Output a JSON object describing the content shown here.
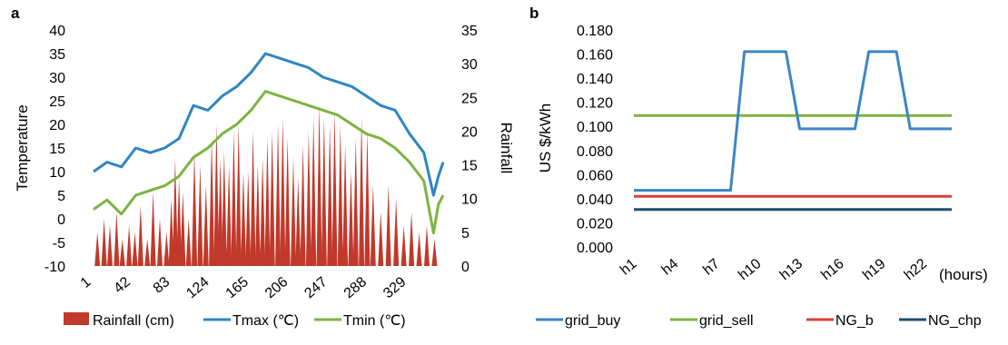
{
  "chart_data": [
    {
      "panel": "a",
      "type": "line",
      "ylabel": "Temperature",
      "y2label": "Rainfall",
      "ylim": [
        -10,
        40
      ],
      "y_ticks": [
        40,
        35,
        30,
        25,
        20,
        15,
        10,
        5,
        0,
        -5,
        -10
      ],
      "y2lim": [
        0,
        35
      ],
      "y2_ticks": [
        35,
        30,
        25,
        20,
        15,
        10,
        5,
        0
      ],
      "x_tick_labels": [
        "1",
        "42",
        "83",
        "124",
        "165",
        "206",
        "247",
        "288",
        "329"
      ],
      "x_range": [
        1,
        365
      ],
      "legend_position": "bottom",
      "series": [
        {
          "name": "Rainfall (cm)",
          "type": "bar",
          "axis": "right",
          "color": "#c0392b",
          "x": [
            5,
            12,
            18,
            25,
            31,
            38,
            44,
            50,
            57,
            63,
            70,
            77,
            82,
            86,
            90,
            94,
            100,
            106,
            112,
            118,
            124,
            129,
            133,
            137,
            142,
            147,
            152,
            157,
            162,
            167,
            172,
            177,
            182,
            187,
            193,
            198,
            203,
            209,
            214,
            219,
            225,
            230,
            236,
            241,
            247,
            252,
            258,
            263,
            269,
            274,
            280,
            286,
            292,
            300,
            308,
            316,
            324,
            332,
            340,
            348,
            356
          ],
          "values": [
            5,
            7,
            6,
            8,
            4,
            6,
            5,
            9,
            4,
            11,
            7,
            5,
            10,
            16,
            13,
            11,
            7,
            17,
            15,
            12,
            19,
            21,
            16,
            17,
            15,
            20,
            21,
            14,
            14,
            20,
            15,
            16,
            19,
            20,
            21,
            22,
            19,
            16,
            13,
            18,
            20,
            22,
            24,
            22,
            21,
            23,
            21,
            18,
            14,
            19,
            22,
            20,
            12,
            8,
            12,
            10,
            6,
            8,
            5,
            6,
            4
          ]
        },
        {
          "name": "Tmax (℃)",
          "type": "line",
          "axis": "left",
          "color": "#2e86c1",
          "x": [
            1,
            15,
            30,
            45,
            60,
            75,
            90,
            105,
            120,
            135,
            150,
            165,
            180,
            195,
            210,
            225,
            240,
            255,
            270,
            285,
            300,
            315,
            330,
            345,
            355,
            360,
            365
          ],
          "values": [
            10,
            12,
            11,
            15,
            14,
            15,
            17,
            24,
            23,
            26,
            28,
            31,
            35,
            34,
            33,
            32,
            30,
            29,
            28,
            26,
            24,
            23,
            18,
            14,
            5,
            9,
            12
          ]
        },
        {
          "name": "Tmin (℃)",
          "type": "line",
          "axis": "left",
          "color": "#7cb342",
          "x": [
            1,
            15,
            30,
            45,
            60,
            75,
            90,
            105,
            120,
            135,
            150,
            165,
            180,
            195,
            210,
            225,
            240,
            255,
            270,
            285,
            300,
            315,
            330,
            345,
            355,
            360,
            365
          ],
          "values": [
            2,
            4,
            1,
            5,
            6,
            7,
            9,
            13,
            15,
            18,
            20,
            23,
            27,
            26,
            25,
            24,
            23,
            22,
            20,
            18,
            17,
            15,
            12,
            8,
            -3,
            3,
            5
          ]
        }
      ]
    },
    {
      "panel": "b",
      "type": "line",
      "ylabel": "US $/kWh",
      "xlabel": "(hours)",
      "ylim": [
        0,
        0.18
      ],
      "y_tick_labels": [
        "0.180",
        "0.160",
        "0.140",
        "0.120",
        "0.100",
        "0.080",
        "0.060",
        "0.040",
        "0.020",
        "0.000"
      ],
      "x_tick_labels": [
        "h1",
        "h4",
        "h7",
        "h10",
        "h13",
        "h16",
        "h19",
        "h22"
      ],
      "x_range": [
        1,
        24
      ],
      "legend_position": "bottom",
      "series": [
        {
          "name": "grid_buy",
          "color": "#3d85c6",
          "x": [
            1,
            2,
            3,
            4,
            5,
            6,
            7,
            8,
            9,
            10,
            11,
            12,
            13,
            14,
            15,
            16,
            17,
            18,
            19,
            20,
            21,
            22,
            23,
            24
          ],
          "values": [
            0.047,
            0.047,
            0.047,
            0.047,
            0.047,
            0.047,
            0.047,
            0.047,
            0.162,
            0.162,
            0.162,
            0.162,
            0.098,
            0.098,
            0.098,
            0.098,
            0.098,
            0.162,
            0.162,
            0.162,
            0.098,
            0.098,
            0.098,
            0.098
          ]
        },
        {
          "name": "grid_sell",
          "color": "#7cb342",
          "x": [
            1,
            24
          ],
          "values": [
            0.109,
            0.109
          ]
        },
        {
          "name": "NG_b",
          "color": "#d9413a",
          "x": [
            1,
            24
          ],
          "values": [
            0.042,
            0.042
          ]
        },
        {
          "name": "NG_chp",
          "color": "#1f4e6e",
          "x": [
            1,
            24
          ],
          "values": [
            0.031,
            0.031
          ]
        }
      ]
    }
  ]
}
